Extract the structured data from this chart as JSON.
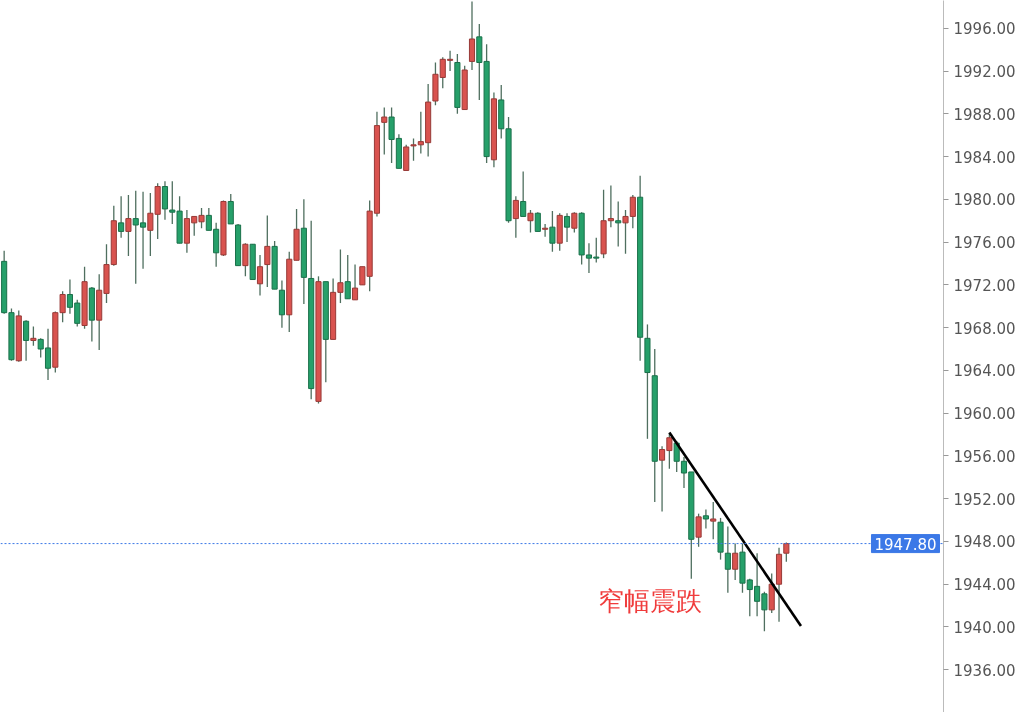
{
  "chart_data": {
    "type": "candlestick",
    "categories": [
      null,
      null,
      null,
      null,
      null,
      null,
      null,
      null,
      null,
      null,
      null,
      null,
      null,
      null,
      null,
      null,
      null,
      null,
      null,
      null,
      null,
      null,
      null,
      null,
      null,
      null,
      null,
      null,
      null,
      null,
      null,
      null,
      null,
      null,
      null,
      null,
      null,
      null,
      null,
      null,
      null,
      null,
      null,
      null,
      null,
      null,
      null,
      null,
      null,
      null,
      null,
      null,
      null,
      null,
      null,
      null,
      null,
      null,
      null,
      null,
      null,
      null,
      null,
      null,
      null,
      null,
      null,
      null,
      null,
      null,
      null,
      null,
      null,
      null,
      null,
      null,
      null,
      null,
      null,
      null,
      null,
      null,
      null,
      null,
      null,
      null,
      null,
      null,
      null,
      null,
      null,
      null,
      null,
      null,
      null,
      null,
      null,
      null,
      null,
      null,
      null,
      null,
      null,
      null,
      null,
      null,
      null,
      null,
      null,
      null,
      null,
      null,
      null,
      null,
      null,
      null,
      null,
      null,
      null,
      null,
      null,
      null,
      null,
      null,
      null,
      null,
      null,
      null,
      null
    ],
    "ohlc": [
      [
        1974.2,
        1975.2,
        1969.3,
        1969.4
      ],
      [
        1969.4,
        1969.8,
        1964.9,
        1965.0
      ],
      [
        1964.9,
        1969.6,
        1964.8,
        1969.1
      ],
      [
        1968.6,
        1968.7,
        1964.9,
        1966.8
      ],
      [
        1966.8,
        1968.1,
        1966.3,
        1967.0
      ],
      [
        1966.9,
        1967.0,
        1965.2,
        1966.0
      ],
      [
        1966.1,
        1967.9,
        1963.1,
        1964.2
      ],
      [
        1964.3,
        1969.5,
        1963.8,
        1969.4
      ],
      [
        1969.4,
        1971.4,
        1968.5,
        1971.1
      ],
      [
        1971.1,
        1972.5,
        1969.3,
        1969.9
      ],
      [
        1970.3,
        1970.6,
        1968.1,
        1968.4
      ],
      [
        1968.2,
        1973.7,
        1967.9,
        1972.3
      ],
      [
        1971.7,
        1971.8,
        1966.7,
        1968.7
      ],
      [
        1968.7,
        1973.0,
        1965.9,
        1971.5
      ],
      [
        1971.2,
        1975.8,
        1970.3,
        1973.9
      ],
      [
        1973.9,
        1979.4,
        1973.8,
        1978.0
      ],
      [
        1977.8,
        1980.3,
        1976.4,
        1977.0
      ],
      [
        1977.0,
        1980.4,
        1974.7,
        1978.2
      ],
      [
        1978.2,
        1980.8,
        1972.1,
        1977.6
      ],
      [
        1977.8,
        1980.7,
        1973.5,
        1977.4
      ],
      [
        1977.1,
        1980.6,
        1974.7,
        1978.7
      ],
      [
        1978.6,
        1981.5,
        1976.3,
        1981.2
      ],
      [
        1981.2,
        1981.7,
        1978.1,
        1979.1
      ],
      [
        1979.0,
        1981.7,
        1977.7,
        1978.8
      ],
      [
        1978.9,
        1980.3,
        1975.9,
        1975.9
      ],
      [
        1975.9,
        1979.0,
        1975.0,
        1978.2
      ],
      [
        1977.8,
        1978.4,
        1976.6,
        1978.4
      ],
      [
        1977.9,
        1979.2,
        1977.3,
        1978.5
      ],
      [
        1978.5,
        1979.2,
        1977.1,
        1977.1
      ],
      [
        1977.2,
        1977.8,
        1973.7,
        1975.0
      ],
      [
        1974.8,
        1979.9,
        1974.7,
        1979.8
      ],
      [
        1979.8,
        1980.5,
        1977.7,
        1977.7
      ],
      [
        1977.6,
        1977.7,
        1973.8,
        1973.8
      ],
      [
        1973.8,
        1975.9,
        1972.8,
        1975.8
      ],
      [
        1975.8,
        1975.8,
        1972.5,
        1972.5
      ],
      [
        1972.1,
        1974.8,
        1971.0,
        1973.7
      ],
      [
        1973.9,
        1978.5,
        1971.8,
        1975.6
      ],
      [
        1975.6,
        1976.1,
        1971.6,
        1971.6
      ],
      [
        1971.5,
        1972.4,
        1968.0,
        1969.2
      ],
      [
        1969.2,
        1975.1,
        1967.6,
        1974.4
      ],
      [
        1974.3,
        1979.1,
        1974.3,
        1977.2
      ],
      [
        1977.3,
        1980.0,
        1970.2,
        1972.7
      ],
      [
        1972.6,
        1978.0,
        1961.3,
        1962.3
      ],
      [
        1961.1,
        1972.8,
        1960.9,
        1972.3
      ],
      [
        1972.3,
        1972.3,
        1962.9,
        1966.9
      ],
      [
        1966.9,
        1972.6,
        1966.9,
        1971.3
      ],
      [
        1971.3,
        1975.3,
        1970.3,
        1972.2
      ],
      [
        1972.3,
        1974.8,
        1970.7,
        1970.7
      ],
      [
        1970.6,
        1973.9,
        1970.6,
        1971.7
      ],
      [
        1972.0,
        1973.7,
        1972.0,
        1973.7
      ],
      [
        1972.8,
        1979.9,
        1971.4,
        1978.9
      ],
      [
        1978.7,
        1988.2,
        1978.4,
        1986.9
      ],
      [
        1987.2,
        1988.6,
        1984.2,
        1987.7
      ],
      [
        1987.7,
        1988.6,
        1983.4,
        1985.6
      ],
      [
        1985.7,
        1986.1,
        1982.9,
        1982.9
      ],
      [
        1982.7,
        1985.1,
        1982.7,
        1984.9
      ],
      [
        1985.0,
        1985.7,
        1983.6,
        1985.1
      ],
      [
        1985.1,
        1988.2,
        1984.3,
        1985.4
      ],
      [
        1985.3,
        1990.8,
        1984.0,
        1989.1
      ],
      [
        1989.2,
        1992.8,
        1988.8,
        1991.7
      ],
      [
        1991.4,
        1993.3,
        1990.4,
        1993.1
      ],
      [
        1993.0,
        1993.9,
        1992.0,
        1993.1
      ],
      [
        1992.8,
        1993.6,
        1988.0,
        1988.6
      ],
      [
        1988.4,
        1992.5,
        1988.4,
        1992.1
      ],
      [
        1992.9,
        1998.5,
        1992.1,
        1995.0
      ],
      [
        1995.2,
        1996.4,
        1989.3,
        1992.8
      ],
      [
        1992.9,
        1994.5,
        1983.4,
        1984.0
      ],
      [
        1983.7,
        1990.0,
        1983.0,
        1989.4
      ],
      [
        1989.3,
        1990.7,
        1985.7,
        1986.6
      ],
      [
        1986.6,
        1987.7,
        1977.8,
        1978.0
      ],
      [
        1978.2,
        1980.3,
        1976.4,
        1979.9
      ],
      [
        1979.8,
        1982.6,
        1978.4,
        1978.4
      ],
      [
        1978.0,
        1979.0,
        1976.9,
        1978.7
      ],
      [
        1978.7,
        1978.8,
        1977.0,
        1977.0
      ],
      [
        1977.2,
        1977.7,
        1976.5,
        1977.3
      ],
      [
        1977.4,
        1978.9,
        1975.1,
        1975.9
      ],
      [
        1975.9,
        1978.7,
        1975.2,
        1978.5
      ],
      [
        1978.4,
        1978.7,
        1976.0,
        1977.4
      ],
      [
        1977.3,
        1978.8,
        1976.9,
        1978.7
      ],
      [
        1978.7,
        1978.8,
        1973.9,
        1974.8
      ],
      [
        1974.8,
        1975.9,
        1973.1,
        1974.5
      ],
      [
        1974.6,
        1976.4,
        1974.1,
        1974.5
      ],
      [
        1974.9,
        1980.9,
        1974.5,
        1978.0
      ],
      [
        1978.0,
        1981.3,
        1977.4,
        1978.2
      ],
      [
        1978.0,
        1979.8,
        1975.6,
        1977.8
      ],
      [
        1977.8,
        1979.0,
        1974.9,
        1978.4
      ],
      [
        1978.4,
        1980.4,
        1977.3,
        1980.2
      ],
      [
        1980.2,
        1982.2,
        1964.9,
        1967.1
      ],
      [
        1967.0,
        1968.3,
        1957.6,
        1963.8
      ],
      [
        1963.5,
        1966.0,
        1951.7,
        1955.5
      ],
      [
        1955.6,
        1956.9,
        1950.8,
        1956.6
      ],
      [
        1956.5,
        1958.1,
        1954.8,
        1957.7
      ],
      [
        1957.2,
        1957.4,
        1954.5,
        1955.5
      ],
      [
        1955.5,
        1955.9,
        1953.0,
        1954.4
      ],
      [
        1954.5,
        1954.5,
        1944.5,
        1948.2
      ],
      [
        1948.4,
        1950.6,
        1947.5,
        1950.3
      ],
      [
        1950.4,
        1951.0,
        1949.2,
        1950.1
      ],
      [
        1949.9,
        1951.7,
        1948.2,
        1950.1
      ],
      [
        1949.8,
        1950.2,
        1946.3,
        1947.0
      ],
      [
        1946.9,
        1949.4,
        1943.2,
        1945.4
      ],
      [
        1945.4,
        1947.8,
        1944.4,
        1946.9
      ],
      [
        1947.0,
        1947.8,
        1943.2,
        1944.1
      ],
      [
        1944.4,
        1944.5,
        1941.0,
        1943.5
      ],
      [
        1943.8,
        1946.9,
        1941.0,
        1942.4
      ],
      [
        1943.1,
        1943.3,
        1939.6,
        1941.6
      ],
      [
        1941.6,
        1945.0,
        1941.3,
        1944.0
      ],
      [
        1944.0,
        1947.4,
        1940.5,
        1946.8
      ],
      [
        1946.9,
        1947.9,
        1946.1,
        1947.8
      ],
      null,
      null,
      null,
      null,
      null,
      null,
      null,
      null,
      null,
      null,
      null,
      null,
      null,
      null,
      null,
      null,
      null,
      null,
      null,
      null,
      null
    ],
    "colors": [
      "#26a06a",
      "#26a06a",
      "#d9534f",
      "#26a06a",
      "#d9534f",
      "#26a06a",
      "#26a06a",
      "#d9534f",
      "#d9534f",
      "#26a06a",
      "#26a06a",
      "#d9534f",
      "#26a06a",
      "#d9534f",
      "#d9534f",
      "#d9534f",
      "#26a06a",
      "#d9534f",
      "#26a06a",
      "#26a06a",
      "#d9534f",
      "#d9534f",
      "#26a06a",
      "#26a06a",
      "#26a06a",
      "#d9534f",
      "#d9534f",
      "#d9534f",
      "#26a06a",
      "#26a06a",
      "#d9534f",
      "#26a06a",
      "#26a06a",
      "#d9534f",
      "#26a06a",
      "#d9534f",
      "#d9534f",
      "#26a06a",
      "#26a06a",
      "#d9534f",
      "#d9534f",
      "#26a06a",
      "#26a06a",
      "#d9534f",
      "#26a06a",
      "#d9534f",
      "#d9534f",
      "#26a06a",
      "#d9534f",
      "#d9534f",
      "#d9534f",
      "#d9534f",
      "#d9534f",
      "#26a06a",
      "#26a06a",
      "#d9534f",
      "#d9534f",
      "#d9534f",
      "#d9534f",
      "#d9534f",
      "#d9534f",
      "#d9534f",
      "#26a06a",
      "#d9534f",
      "#d9534f",
      "#26a06a",
      "#26a06a",
      "#d9534f",
      "#26a06a",
      "#26a06a",
      "#d9534f",
      "#26a06a",
      "#d9534f",
      "#26a06a",
      "#d9534f",
      "#26a06a",
      "#d9534f",
      "#26a06a",
      "#d9534f",
      "#26a06a",
      "#26a06a",
      "#26a06a",
      "#d9534f",
      "#d9534f",
      "#26a06a",
      "#d9534f",
      "#d9534f",
      "#26a06a",
      "#26a06a",
      "#26a06a",
      "#d9534f",
      "#d9534f",
      "#26a06a",
      "#26a06a",
      "#26a06a",
      "#d9534f",
      "#26a06a",
      "#d9534f",
      "#26a06a",
      "#26a06a",
      "#d9534f",
      "#26a06a",
      "#26a06a",
      "#26a06a",
      "#26a06a",
      "#d9534f",
      "#d9534f",
      "#d9534f",
      null,
      null,
      null,
      null,
      null,
      null,
      null,
      null,
      null,
      null,
      null,
      null,
      null,
      null,
      null,
      null,
      null,
      null,
      null,
      null,
      null
    ],
    "series": [
      {
        "type": "line",
        "color": "#000000",
        "values": [
          null,
          null,
          null,
          null,
          null,
          null,
          null,
          null,
          null,
          null,
          null,
          null,
          null,
          null,
          null,
          null,
          null,
          null,
          null,
          null,
          null,
          null,
          null,
          null,
          null,
          null,
          null,
          null,
          null,
          null,
          null,
          null,
          null,
          null,
          null,
          null,
          null,
          null,
          null,
          null,
          null,
          null,
          null,
          null,
          null,
          null,
          null,
          null,
          null,
          null,
          null,
          null,
          null,
          null,
          null,
          null,
          null,
          null,
          null,
          null,
          null,
          null,
          null,
          null,
          null,
          null,
          null,
          null,
          null,
          null,
          null,
          null,
          null,
          null,
          null,
          null,
          null,
          null,
          null,
          null,
          null,
          null,
          null,
          null,
          null,
          null,
          null,
          null,
          null,
          null,
          null,
          1958.2,
          null,
          null,
          null,
          null,
          null,
          null,
          null,
          null,
          null,
          null,
          null,
          null,
          null,
          null,
          null,
          null,
          null,
          1940.1,
          null,
          null,
          null,
          null,
          null,
          null,
          null,
          null,
          null,
          null,
          null,
          null,
          null,
          null,
          null,
          null,
          null,
          null,
          null
        ]
      }
    ],
    "ylim": [
      1932.0,
      1998.6
    ],
    "yticks": [
      {
        "value": 1936,
        "label": "1936.00"
      },
      {
        "value": 1940,
        "label": "1940.00"
      },
      {
        "value": 1944,
        "label": "1944.00"
      },
      {
        "value": 1948,
        "label": "1948.00"
      },
      {
        "value": 1952,
        "label": "1952.00"
      },
      {
        "value": 1956,
        "label": "1956.00"
      },
      {
        "value": 1960,
        "label": "1960.00"
      },
      {
        "value": 1964,
        "label": "1964.00"
      },
      {
        "value": 1968,
        "label": "1968.00"
      },
      {
        "value": 1972,
        "label": "1972.00"
      },
      {
        "value": 1976,
        "label": "1976.00"
      },
      {
        "value": 1980,
        "label": "1980.00"
      },
      {
        "value": 1984,
        "label": "1984.00"
      },
      {
        "value": 1988,
        "label": "1988.00"
      },
      {
        "value": 1992,
        "label": "1992.00"
      },
      {
        "value": 1996,
        "label": "1996.00"
      }
    ],
    "ref_lines": [
      {
        "axis": "y",
        "value": 1947.8,
        "label": "1947.80",
        "color": "#3b78e7",
        "line_style": "dotted"
      }
    ],
    "annotations": [
      "窄幅震跌"
    ],
    "tick_labels": "y"
  }
}
